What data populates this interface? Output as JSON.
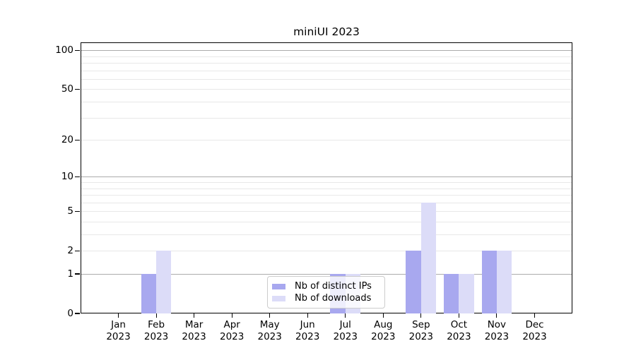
{
  "title": "miniUI 2023",
  "chart_data": {
    "type": "bar",
    "x_categories": [
      "Jan",
      "Feb",
      "Mar",
      "Apr",
      "May",
      "Jun",
      "Jul",
      "Aug",
      "Sep",
      "Oct",
      "Nov",
      "Dec"
    ],
    "x_year": "2023",
    "series": [
      {
        "name": "Nb of distinct IPs",
        "color": "#a8a8ef",
        "values": [
          0,
          1,
          0,
          0,
          0,
          0,
          1,
          0,
          2,
          1,
          2,
          0
        ]
      },
      {
        "name": "Nb of downloads",
        "color": "#dcdcf8",
        "values": [
          0,
          2,
          0,
          0,
          0,
          0,
          1,
          0,
          6,
          1,
          2,
          0
        ]
      }
    ],
    "title": "miniUI 2023",
    "xlabel": "",
    "ylabel": "",
    "y_scale": "log1p",
    "ylim": [
      0,
      115
    ],
    "y_tick_labels": [
      0,
      1,
      2,
      5,
      10,
      20,
      50,
      100
    ],
    "major_gridlines": [
      1,
      10,
      100
    ],
    "minor_gridlines": [
      2,
      3,
      4,
      5,
      6,
      7,
      8,
      9,
      20,
      30,
      40,
      50,
      60,
      70,
      80,
      90
    ],
    "grid": true,
    "legend_position": "lower center"
  },
  "colors": {
    "major_grid": "#ababab",
    "minor_grid": "#e8e8e8",
    "axis": "#000000",
    "background": "#ffffff"
  }
}
